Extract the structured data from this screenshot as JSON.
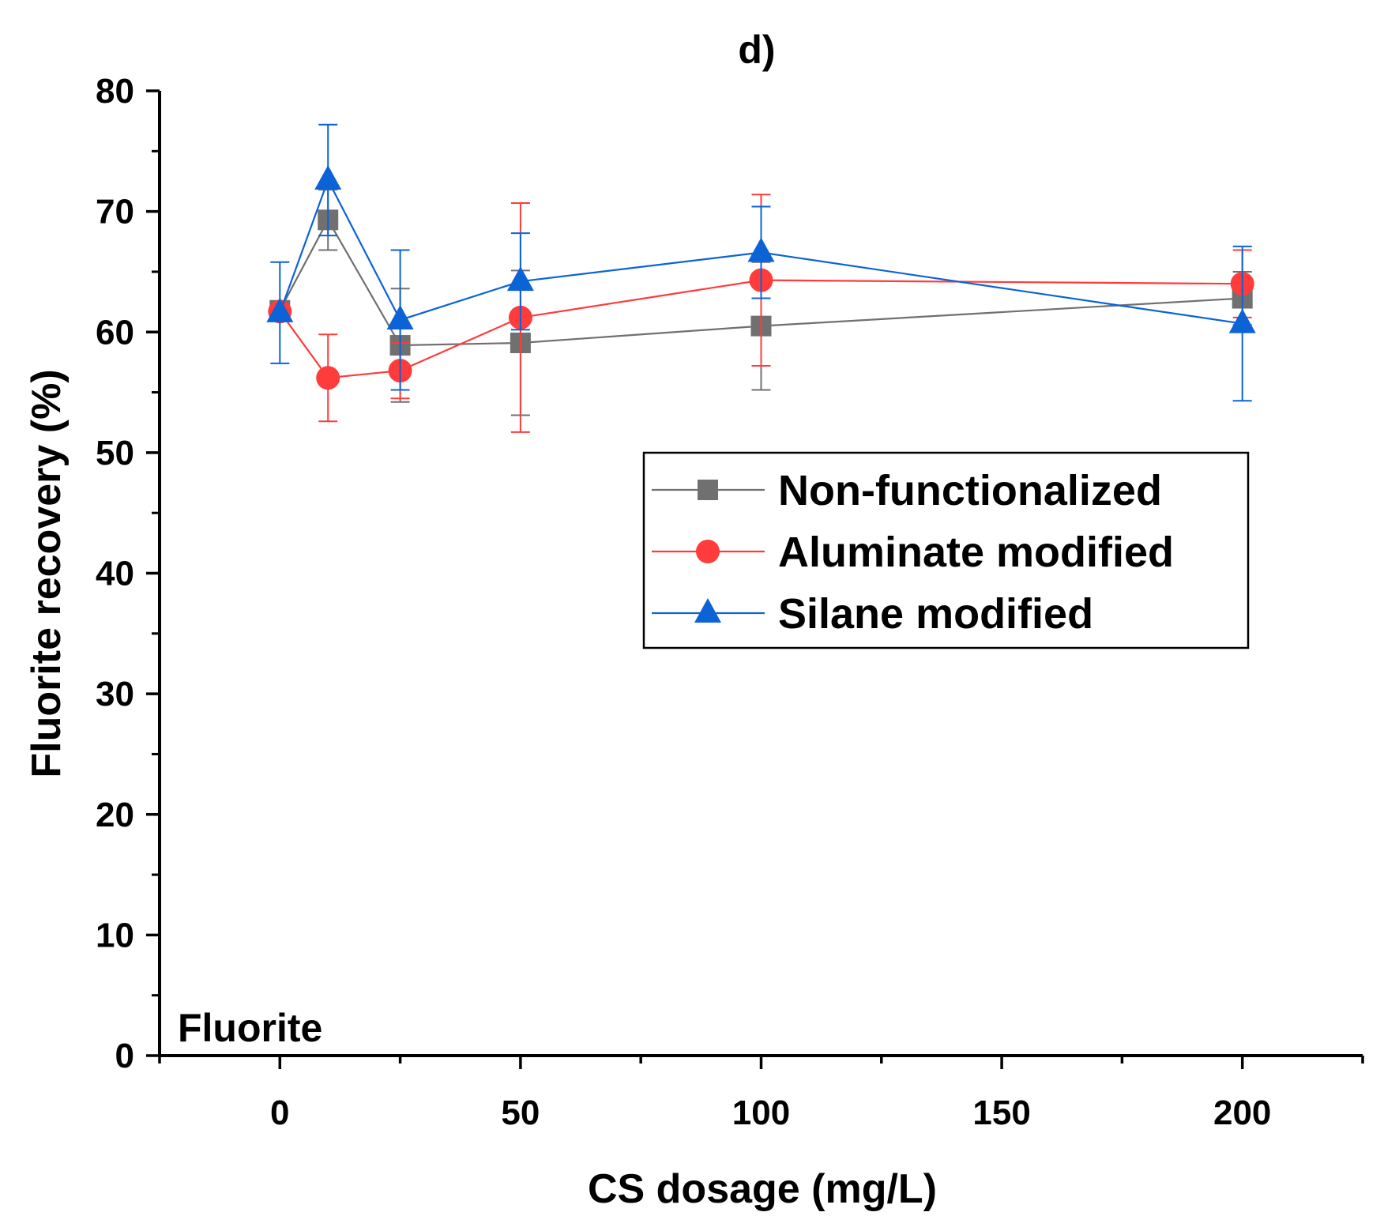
{
  "chart_data": {
    "type": "line",
    "title": "d)",
    "xlabel": "CS dosage (mg/L)",
    "ylabel": "Fluorite recovery (%)",
    "xlim": [
      -25,
      225
    ],
    "ylim": [
      0,
      80
    ],
    "xticks": [
      0,
      50,
      100,
      150,
      200
    ],
    "yticks": [
      0,
      10,
      20,
      30,
      40,
      50,
      60,
      70,
      80
    ],
    "x_tick_labels": [
      "0",
      "50",
      "100",
      "150",
      "200"
    ],
    "y_tick_labels": [
      "0",
      "10",
      "20",
      "30",
      "40",
      "50",
      "60",
      "70",
      "80"
    ],
    "annotation": "Fluorite",
    "legend_position": "center-right",
    "series": [
      {
        "name": "Non-functionalized",
        "marker": "square",
        "color": "#707070",
        "x": [
          0,
          10,
          25,
          50,
          100,
          200
        ],
        "y": [
          61.8,
          69.3,
          58.9,
          59.1,
          60.5,
          62.8
        ],
        "err": [
          0.5,
          2.5,
          4.7,
          6.0,
          5.3,
          2.2
        ]
      },
      {
        "name": "Aluminate modified",
        "marker": "circle",
        "color": "#ff3b3b",
        "x": [
          0,
          10,
          25,
          50,
          100,
          200
        ],
        "y": [
          61.7,
          56.2,
          56.8,
          61.2,
          64.3,
          64.0
        ],
        "err": [
          0.5,
          3.6,
          2.3,
          9.5,
          7.1,
          2.8
        ]
      },
      {
        "name": "Silane modified",
        "marker": "triangle",
        "color": "#0b63d6",
        "x": [
          0,
          10,
          25,
          50,
          100,
          200
        ],
        "y": [
          61.6,
          72.6,
          61.0,
          64.2,
          66.6,
          60.7
        ],
        "err": [
          4.2,
          4.6,
          5.8,
          4.0,
          3.8,
          6.4
        ]
      }
    ]
  }
}
